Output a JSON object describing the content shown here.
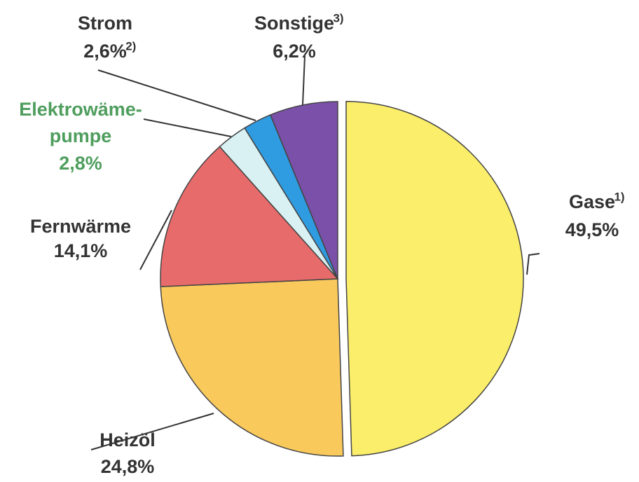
{
  "chart_data": {
    "type": "pie",
    "categories": [
      "Gase",
      "Heizöl",
      "Fernwärme",
      "Elektrowäme-pumpe",
      "Strom",
      "Sonstige"
    ],
    "notes": [
      "1)",
      null,
      null,
      null,
      "2)",
      "3)"
    ],
    "values": [
      49.5,
      24.8,
      14.1,
      2.8,
      2.6,
      6.2
    ],
    "value_labels": [
      "49,5%",
      "24,8%",
      "14,1%",
      "2,8%",
      "2,6%",
      "6,2%"
    ],
    "colors": [
      "#fbee6a",
      "#f9c95c",
      "#e86b6b",
      "#d9f1f3",
      "#2f9be0",
      "#7a50a8"
    ]
  }
}
